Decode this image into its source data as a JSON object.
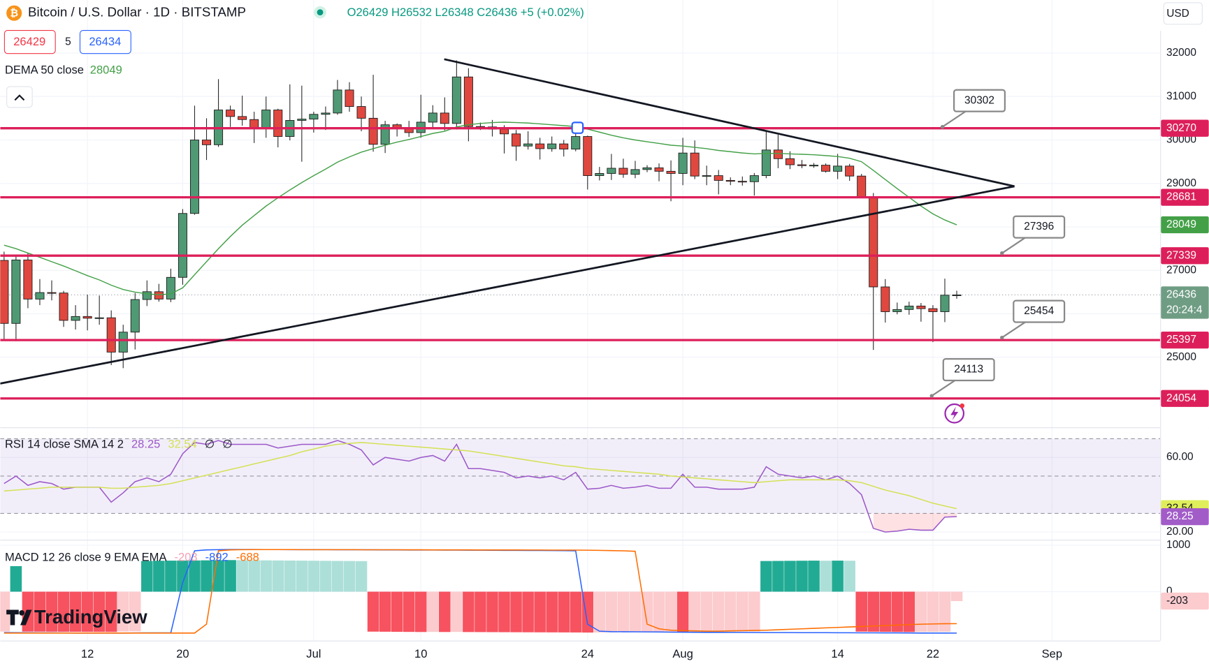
{
  "watermark": "TradingView",
  "chart_data": [
    {
      "type": "candlestick",
      "title": "Bitcoin / U.S. Dollar · 1D · BITSTAMP",
      "ohlc_text": "O26429 H26532 L26348 C26436 +5 (+0.02%)",
      "currency": "USD",
      "bid": 26429,
      "spread": 5,
      "ask": 26434,
      "countdown": "20:24:4",
      "up_color": "#4f9a74",
      "down_color": "#e0483f",
      "wick_color": "#2a2a2a",
      "grid": true,
      "ylim": [
        23390,
        33220
      ],
      "yticks": [
        25000,
        26000,
        27000,
        28000,
        29000,
        30000,
        31000,
        32000
      ],
      "xticks": [
        {
          "value": 7,
          "label": "12"
        },
        {
          "value": 15,
          "label": "20"
        },
        {
          "value": 26,
          "label": "Jul"
        },
        {
          "value": 35,
          "label": "10"
        },
        {
          "value": 49,
          "label": "24"
        },
        {
          "value": 57,
          "label": "Aug"
        },
        {
          "value": 70,
          "label": "14"
        },
        {
          "value": 78,
          "label": "22"
        },
        {
          "value": 88,
          "label": "Sep"
        }
      ],
      "open": [
        27230,
        25780,
        27240,
        26340,
        26490,
        26480,
        25850,
        25940,
        25900,
        25910,
        25120,
        25580,
        26330,
        26510,
        26340,
        26840,
        28310,
        30000,
        29890,
        30690,
        30540,
        30470,
        30270,
        30690,
        30080,
        30450,
        30480,
        30590,
        30620,
        31150,
        30770,
        30500,
        29900,
        30350,
        30290,
        30170,
        30410,
        30620,
        30380,
        31450,
        30310,
        30300,
        30250,
        30140,
        29860,
        29910,
        29800,
        29910,
        29790,
        30080,
        29180,
        29230,
        29350,
        29210,
        29320,
        29360,
        29280,
        29230,
        29700,
        29170,
        29180,
        29070,
        29050,
        29040,
        29180,
        29770,
        29570,
        29430,
        29410,
        29420,
        29280,
        29400,
        29170,
        28700,
        26620,
        26050,
        26100,
        26180,
        26120,
        26050,
        26429
      ],
      "high": [
        27430,
        27360,
        27390,
        26800,
        26770,
        26530,
        26200,
        26440,
        26420,
        26080,
        25750,
        26480,
        26770,
        26690,
        27040,
        28410,
        30790,
        30500,
        31400,
        30790,
        31020,
        30650,
        31000,
        30720,
        31280,
        31250,
        30650,
        30770,
        31380,
        31330,
        31000,
        31500,
        30440,
        30380,
        30440,
        31040,
        30800,
        30980,
        31830,
        31650,
        30400,
        30460,
        30340,
        30230,
        30200,
        30050,
        30080,
        30000,
        30350,
        30100,
        29380,
        29680,
        29570,
        29520,
        29420,
        29460,
        29530,
        30050,
        29990,
        29410,
        29310,
        29140,
        29160,
        29240,
        30200,
        30120,
        29740,
        29540,
        29470,
        29460,
        29680,
        29450,
        29220,
        28780,
        26800,
        26260,
        26280,
        26250,
        26200,
        26810,
        26532
      ],
      "low": [
        25390,
        25370,
        26130,
        26200,
        26310,
        25700,
        25640,
        25620,
        25750,
        24820,
        24750,
        25180,
        26180,
        26280,
        26270,
        26670,
        28280,
        29540,
        29840,
        30300,
        30330,
        29930,
        30050,
        29830,
        29990,
        29500,
        30170,
        30230,
        30580,
        30650,
        30200,
        29730,
        29700,
        30080,
        30070,
        30050,
        30280,
        30220,
        30240,
        29970,
        30230,
        30080,
        29690,
        29520,
        29780,
        29550,
        29730,
        29620,
        29740,
        28860,
        29070,
        29080,
        29130,
        29120,
        29260,
        29050,
        28590,
        28960,
        29100,
        28960,
        28750,
        28960,
        28950,
        28720,
        29120,
        29350,
        29330,
        29350,
        29360,
        29250,
        29100,
        29060,
        28700,
        25170,
        25800,
        25990,
        25980,
        25820,
        25350,
        25810,
        26348
      ],
      "close": [
        25780,
        27240,
        26340,
        26490,
        26480,
        25850,
        25940,
        25900,
        25910,
        25120,
        25580,
        26330,
        26510,
        26340,
        26840,
        28310,
        30000,
        29890,
        30690,
        30540,
        30470,
        30270,
        30690,
        30080,
        30450,
        30480,
        30590,
        30620,
        31150,
        30770,
        30500,
        29900,
        30350,
        30290,
        30170,
        30410,
        30620,
        30380,
        31450,
        30310,
        30300,
        30250,
        30140,
        29860,
        29910,
        29800,
        29910,
        29790,
        30080,
        29180,
        29230,
        29350,
        29210,
        29320,
        29360,
        29280,
        29230,
        29700,
        29170,
        29180,
        29070,
        29050,
        29040,
        29180,
        29770,
        29570,
        29430,
        29410,
        29420,
        29280,
        29400,
        29170,
        28700,
        26620,
        26050,
        26100,
        26180,
        26120,
        26050,
        26430,
        26436
      ],
      "dema": {
        "label": "DEMA 50 close",
        "color": "#43a047",
        "values": [
          27580,
          27500,
          27400,
          27300,
          27200,
          27100,
          26990,
          26880,
          26780,
          26660,
          26560,
          26500,
          26460,
          26440,
          26460,
          26600,
          26900,
          27200,
          27500,
          27780,
          28040,
          28260,
          28480,
          28670,
          28850,
          29020,
          29180,
          29330,
          29490,
          29610,
          29720,
          29800,
          29880,
          29950,
          30010,
          30080,
          30150,
          30200,
          30300,
          30350,
          30380,
          30400,
          30410,
          30400,
          30390,
          30370,
          30350,
          30330,
          30310,
          30250,
          30180,
          30110,
          30050,
          30000,
          29960,
          29920,
          29880,
          29860,
          29830,
          29800,
          29760,
          29730,
          29700,
          29680,
          29690,
          29690,
          29680,
          29670,
          29660,
          29640,
          29620,
          29580,
          29500,
          29300,
          29090,
          28880,
          28680,
          28480,
          28300,
          28160,
          28049
        ]
      },
      "levels": {
        "color": "#dc1f5a",
        "values": [
          30270,
          28681,
          27339,
          25397,
          24054
        ]
      },
      "callouts": {
        "values": [
          30302,
          27396,
          25454,
          24113
        ],
        "x": [
          78.8,
          83.8,
          83.8,
          77.9
        ]
      },
      "trendlines": [
        {
          "x": [
            36.96,
            84.85
          ],
          "y": [
            31858,
            28934
          ]
        },
        {
          "x": [
            -0.32,
            84.85
          ],
          "y": [
            24398,
            28934
          ]
        }
      ]
    },
    {
      "type": "line",
      "title": "RSI 14 close SMA 14 2",
      "extra": [
        "∅",
        "∅"
      ],
      "ylim": [
        16.3,
        75.7
      ],
      "yticks": [
        {
          "value": 60,
          "label": "60.00"
        },
        {
          "value": 20,
          "label": "20.00"
        }
      ],
      "bands": [
        70,
        50,
        30
      ],
      "band_color": "#7e57c2",
      "series": [
        {
          "color": "#9c59c9",
          "values": [
            46,
            50,
            45,
            47,
            46,
            43,
            44,
            44,
            44,
            36,
            41,
            47,
            49,
            47,
            51,
            62,
            68,
            67,
            69,
            67,
            67,
            67,
            67,
            65,
            66,
            67,
            67,
            67,
            69,
            67,
            64,
            56,
            60,
            59,
            58,
            60,
            61,
            58,
            67,
            54,
            54,
            53,
            52,
            49,
            50,
            49,
            50,
            48,
            52,
            43,
            43.5,
            45,
            43.5,
            44,
            45,
            43.5,
            43.5,
            51,
            44,
            44,
            43,
            43,
            43,
            44,
            55,
            51,
            50,
            49,
            50,
            48,
            50,
            46,
            40,
            22,
            20,
            20.5,
            21.5,
            21,
            21,
            28,
            28.25
          ]
        },
        {
          "color": "#d4e157",
          "values": [
            42,
            42.5,
            43,
            43.5,
            44,
            44,
            44,
            44,
            44,
            43.5,
            43.5,
            44,
            44.5,
            45,
            46,
            47.5,
            49,
            50.5,
            52,
            53.5,
            55,
            56.5,
            58,
            59.5,
            61,
            63,
            64.5,
            66,
            67,
            67.5,
            68,
            67.5,
            67,
            66.5,
            66,
            65.5,
            65,
            64.5,
            64,
            63.5,
            62.5,
            61.5,
            60.5,
            59.5,
            58.5,
            57.5,
            56.5,
            55.5,
            55,
            54,
            53.5,
            53,
            52.5,
            52,
            51.5,
            51,
            50,
            49.5,
            49,
            48.5,
            48,
            47.5,
            47,
            46.5,
            47,
            47.5,
            48,
            48,
            48,
            48,
            48,
            47.5,
            46.5,
            44.5,
            42.5,
            41,
            39.5,
            37.5,
            35.5,
            34,
            32.54
          ]
        }
      ]
    },
    {
      "type": "bar",
      "title": "MACD 12 26 close 9 EMA EMA",
      "ylim": [
        -1053,
        1085
      ],
      "yticks": [
        1000,
        0
      ],
      "histogram": {
        "colors": [
          "#22ab94",
          "#acdfd8",
          "#f7525f",
          "#fccbcd"
        ],
        "values": [
          -860,
          550,
          -860,
          -861,
          -862,
          -863,
          -864,
          -865,
          -866,
          -867,
          -860,
          -855,
          660,
          665,
          668,
          670,
          672,
          675,
          678,
          680,
          678,
          676,
          674,
          672,
          670,
          668,
          666,
          664,
          662,
          660,
          658,
          -860,
          -862,
          -864,
          -866,
          -868,
          -866,
          -868,
          -866,
          -869,
          -870,
          -871,
          -872,
          -873,
          -874,
          -875,
          -876,
          -877,
          -878,
          -880,
          -878,
          -876,
          -874,
          -872,
          -870,
          -868,
          -866,
          -868,
          -866,
          -864,
          -862,
          -860,
          -858,
          -856,
          660,
          662,
          664,
          666,
          668,
          666,
          668,
          666,
          -860,
          -862,
          -864,
          -866,
          -868,
          -866,
          -864,
          -862,
          -203
        ]
      },
      "series": [
        {
          "color": "#2962ff",
          "values": [
            -880,
            -882,
            -884,
            -886,
            -888,
            -889,
            -890,
            -890,
            -890,
            -890,
            -890,
            -889,
            -888,
            -887,
            -885,
            200,
            880,
            900,
            905,
            907,
            907,
            907,
            906,
            906,
            905,
            905,
            904,
            904,
            903,
            903,
            902,
            901,
            900,
            899,
            898,
            897,
            896,
            895,
            894,
            893,
            892,
            891,
            890,
            889,
            888,
            887,
            886,
            885,
            880,
            -700,
            -850,
            -860,
            -862,
            -864,
            -866,
            -868,
            -870,
            -872,
            -874,
            -875,
            -876,
            -877,
            -878,
            -879,
            -880,
            -880,
            -881,
            -882,
            -882,
            -883,
            -884,
            -884,
            -885,
            -886,
            -887,
            -888,
            -889,
            -890,
            -891,
            -891,
            -892
          ]
        },
        {
          "color": "#ff6d00",
          "values": [
            -890,
            -890,
            -890,
            -890,
            -890,
            -890,
            -890,
            -890,
            -890,
            -890,
            -890,
            -890,
            -890,
            -890,
            -890,
            -890,
            -890,
            -700,
            880,
            900,
            905,
            906,
            906,
            906,
            906,
            905,
            905,
            905,
            904,
            904,
            903,
            903,
            902,
            902,
            901,
            901,
            900,
            900,
            899,
            899,
            898,
            898,
            897,
            897,
            896,
            896,
            895,
            895,
            894,
            893,
            890,
            885,
            880,
            870,
            -700,
            -800,
            -830,
            -840,
            -845,
            -850,
            -850,
            -845,
            -840,
            -835,
            -830,
            -820,
            -810,
            -800,
            -790,
            -780,
            -770,
            -760,
            -750,
            -740,
            -730,
            -720,
            -710,
            -700,
            -695,
            -690,
            -688
          ]
        }
      ]
    }
  ]
}
